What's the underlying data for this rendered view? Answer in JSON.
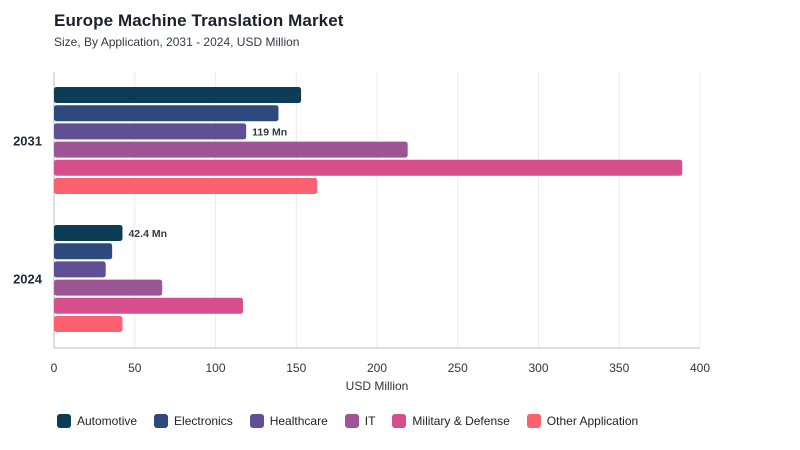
{
  "header": {
    "title": "Europe Machine Translation Market",
    "subtitle": "Size, By Application, 2031 - 2024, USD Million"
  },
  "chart_data": {
    "type": "bar",
    "orientation": "horizontal",
    "title": "Europe Machine Translation Market",
    "subtitle": "Size, By Application, 2031 - 2024, USD Million",
    "xlabel": "USD Million",
    "ylabel": "",
    "xlim": [
      0,
      400
    ],
    "xticks": [
      0,
      50,
      100,
      150,
      200,
      250,
      300,
      350,
      400
    ],
    "grid": true,
    "legend_position": "bottom",
    "categories": [
      "2031",
      "2024"
    ],
    "series": [
      {
        "name": "Automotive",
        "color": "#0d3d56",
        "values": [
          153,
          42.4
        ]
      },
      {
        "name": "Electronics",
        "color": "#2e4a7d",
        "values": [
          139,
          36
        ]
      },
      {
        "name": "Healthcare",
        "color": "#614f95",
        "values": [
          119,
          32
        ]
      },
      {
        "name": "IT",
        "color": "#9d5596",
        "values": [
          219,
          67
        ]
      },
      {
        "name": "Military & Defense",
        "color": "#d64f8c",
        "values": [
          389,
          117
        ]
      },
      {
        "name": "Other Application",
        "color": "#fc6170",
        "values": [
          163,
          42.4
        ]
      }
    ],
    "annotations": [
      {
        "category": "2031",
        "series": "Healthcare",
        "text": "119 Mn"
      },
      {
        "category": "2024",
        "series": "Automotive",
        "text": "42.4 Mn"
      }
    ]
  }
}
